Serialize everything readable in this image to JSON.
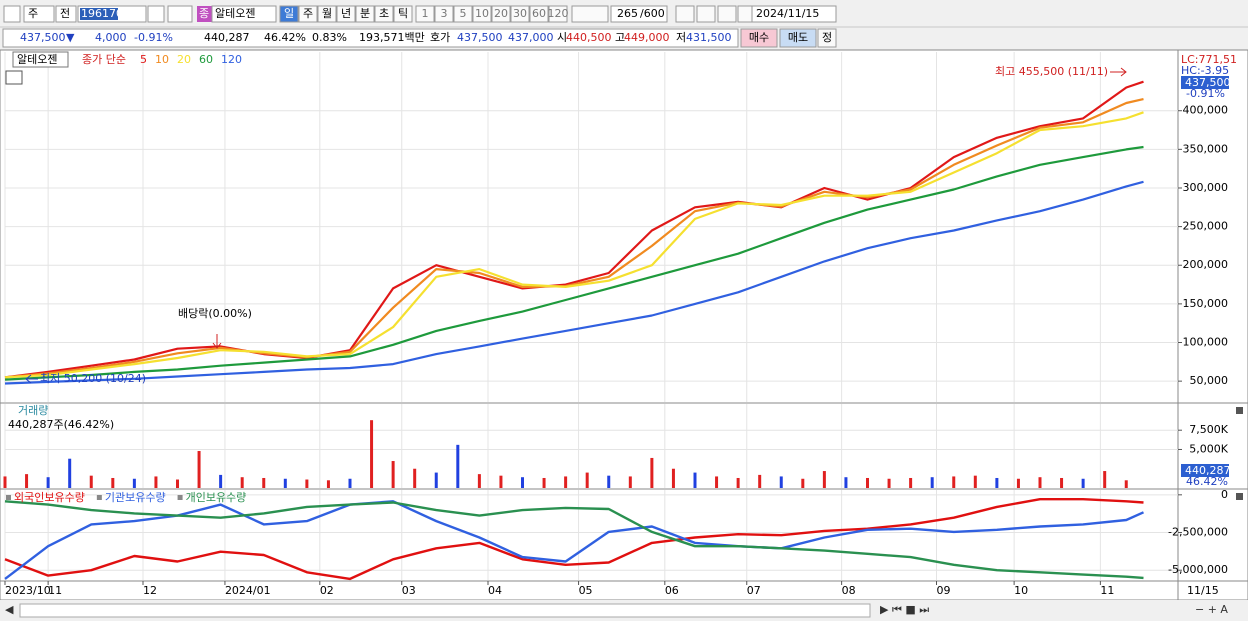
{
  "toolbar": {
    "code_type": "주",
    "market": "전",
    "code": "196170",
    "badge": "종",
    "name": "알테오젠",
    "periods": [
      "일",
      "주",
      "월",
      "년",
      "분",
      "초",
      "틱"
    ],
    "intervals": [
      "1",
      "3",
      "5",
      "10",
      "20",
      "30",
      "60",
      "120"
    ],
    "count": "265",
    "max_count": "/600",
    "date": "2024/11/15"
  },
  "info_bar": {
    "price": "437,500",
    "direction": "▼",
    "change": "4,000",
    "change_rate": "-0.91%",
    "volume": "440,287",
    "volume_rate": "46.42%",
    "turnover": "0.83%",
    "amount": "193,571백만",
    "quote_label": "호가",
    "ask": "437,500",
    "bid": "437,000",
    "open_label": "시",
    "open": "440,500",
    "high_label": "고",
    "high": "449,000",
    "low_label": "저",
    "low": "431,500",
    "buy": "매수",
    "sell": "매도",
    "correction": "정"
  },
  "chart_data": [
    {
      "type": "line",
      "title": "알테오젠",
      "subtitle": "종가 단순",
      "x": [
        0,
        10,
        20,
        30,
        40,
        50,
        60,
        70,
        80,
        90,
        100,
        110,
        120,
        130,
        140,
        150,
        160,
        170,
        180,
        190,
        200,
        210,
        220,
        230,
        240,
        250,
        260,
        264
      ],
      "series": [
        {
          "name": "5",
          "color": "#e01818",
          "values": [
            55000,
            62000,
            70000,
            78000,
            92000,
            95000,
            85000,
            80000,
            90000,
            170000,
            200000,
            185000,
            170000,
            175000,
            190000,
            245000,
            275000,
            282000,
            275000,
            300000,
            285000,
            300000,
            340000,
            365000,
            380000,
            390000,
            430000,
            437500
          ]
        },
        {
          "name": "10",
          "color": "#f08a20",
          "values": [
            55000,
            60000,
            67000,
            75000,
            86000,
            93000,
            86000,
            81000,
            88000,
            145000,
            195000,
            190000,
            172000,
            173000,
            185000,
            225000,
            270000,
            281000,
            276000,
            295000,
            288000,
            298000,
            330000,
            355000,
            378000,
            385000,
            410000,
            415000
          ]
        },
        {
          "name": "20",
          "color": "#f5e030",
          "values": [
            55000,
            58000,
            65000,
            72000,
            80000,
            90000,
            88000,
            82000,
            85000,
            120000,
            185000,
            195000,
            175000,
            172000,
            180000,
            200000,
            260000,
            280000,
            278000,
            290000,
            290000,
            295000,
            320000,
            345000,
            375000,
            380000,
            390000,
            398000
          ]
        },
        {
          "name": "60",
          "color": "#1e9a3c",
          "values": [
            52000,
            55000,
            58000,
            62000,
            65000,
            70000,
            74000,
            78000,
            82000,
            97000,
            115000,
            128000,
            140000,
            155000,
            170000,
            185000,
            200000,
            215000,
            235000,
            255000,
            272000,
            285000,
            298000,
            315000,
            330000,
            340000,
            350000,
            353000
          ]
        },
        {
          "name": "120",
          "color": "#3060e0",
          "values": [
            47000,
            49000,
            51000,
            53000,
            56000,
            59000,
            62000,
            65000,
            67000,
            72000,
            85000,
            95000,
            105000,
            115000,
            125000,
            135000,
            150000,
            165000,
            185000,
            205000,
            222000,
            235000,
            245000,
            258000,
            270000,
            285000,
            302000,
            308000
          ]
        }
      ],
      "xlim": [
        0,
        272
      ],
      "xticks": [
        {
          "value": 0,
          "label": "2023/10"
        },
        {
          "value": 10,
          "label": "11"
        },
        {
          "value": 32,
          "label": "12"
        },
        {
          "value": 51,
          "label": "2024/01"
        },
        {
          "value": 73,
          "label": "02"
        },
        {
          "value": 92,
          "label": "03"
        },
        {
          "value": 112,
          "label": "04"
        },
        {
          "value": 133,
          "label": "05"
        },
        {
          "value": 153,
          "label": "06"
        },
        {
          "value": 172,
          "label": "07"
        },
        {
          "value": 194,
          "label": "08"
        },
        {
          "value": 216,
          "label": "09"
        },
        {
          "value": 234,
          "label": "10"
        },
        {
          "value": 254,
          "label": "11"
        }
      ],
      "end_date": "11/15",
      "ylim": [
        23000,
        476000
      ],
      "yticks": [
        {
          "value": 50000,
          "label": "50,000"
        },
        {
          "value": 100000,
          "label": "100,000"
        },
        {
          "value": 150000,
          "label": "150,000"
        },
        {
          "value": 200000,
          "label": "200,000"
        },
        {
          "value": 250000,
          "label": "250,000"
        },
        {
          "value": 300000,
          "label": "300,000"
        },
        {
          "value": 350000,
          "label": "350,000"
        },
        {
          "value": 400000,
          "label": "400,000"
        }
      ],
      "grid": true,
      "annotations": [
        "최고 455,500 (11/11)",
        "최저 50,200 (10/24)",
        "배당락(0.00%)"
      ],
      "lc_label": "LC:771,51",
      "hc_label": "HC:-3.95",
      "last_label": "437,500",
      "change_label": "-0.91%"
    },
    {
      "type": "bar",
      "title": "거래량",
      "subtitle": "440,287주(46.42%)",
      "x": [
        0,
        5,
        10,
        15,
        20,
        25,
        30,
        35,
        40,
        45,
        50,
        55,
        60,
        65,
        70,
        75,
        80,
        85,
        90,
        95,
        100,
        105,
        110,
        115,
        120,
        125,
        130,
        135,
        140,
        145,
        150,
        155,
        160,
        165,
        170,
        175,
        180,
        185,
        190,
        195,
        200,
        205,
        210,
        215,
        220,
        225,
        230,
        235,
        240,
        245,
        250,
        255,
        260
      ],
      "values": [
        1500,
        1800,
        1400,
        3800,
        1600,
        1300,
        1200,
        1500,
        1100,
        4800,
        1700,
        1400,
        1300,
        1200,
        1100,
        1000,
        1200,
        8800,
        3500,
        2500,
        2000,
        5600,
        1800,
        1600,
        1400,
        1300,
        1500,
        2000,
        1600,
        1500,
        3900,
        2500,
        2000,
        1500,
        1300,
        1700,
        1500,
        1200,
        2200,
        1400,
        1300,
        1200,
        1300,
        1400,
        1500,
        1600,
        1300,
        1200,
        1400,
        1300,
        1200,
        2200,
        1000
      ],
      "colors": [
        "#e02020",
        "#e02020",
        "#2040e0",
        "#2040e0",
        "#e02020",
        "#e02020",
        "#2040e0",
        "#e02020",
        "#e02020",
        "#e02020",
        "#2040e0",
        "#e02020",
        "#e02020",
        "#2040e0",
        "#e02020",
        "#e02020",
        "#2040e0",
        "#e02020",
        "#e02020",
        "#e02020",
        "#2040e0",
        "#2040e0",
        "#e02020",
        "#e02020",
        "#2040e0",
        "#e02020",
        "#e02020",
        "#e02020",
        "#2040e0",
        "#e02020",
        "#e02020",
        "#e02020",
        "#2040e0",
        "#e02020",
        "#e02020",
        "#e02020",
        "#2040e0",
        "#e02020",
        "#e02020",
        "#2040e0",
        "#e02020",
        "#e02020",
        "#e02020",
        "#2040e0",
        "#e02020",
        "#e02020",
        "#2040e0",
        "#e02020",
        "#e02020",
        "#e02020",
        "#2040e0",
        "#e02020",
        "#e02020"
      ],
      "xlim": [
        0,
        272
      ],
      "ylim": [
        0,
        10900
      ],
      "yticks": [
        {
          "value": 5000,
          "label": "5,000K"
        },
        {
          "value": 7500,
          "label": "7,500K"
        }
      ],
      "last_label": "440,287",
      "rate_label": "46.42%"
    },
    {
      "type": "line",
      "x": [
        0,
        10,
        20,
        30,
        40,
        50,
        60,
        70,
        80,
        90,
        100,
        110,
        120,
        130,
        140,
        150,
        160,
        170,
        180,
        190,
        200,
        210,
        220,
        230,
        240,
        250,
        260,
        264
      ],
      "series": [
        {
          "name": "외국인보유수량",
          "color": "#e01010",
          "values": [
            -4280000,
            -5360000,
            -5000000,
            -4060000,
            -4420000,
            -3770000,
            -3990000,
            -5140000,
            -5580000,
            -4280000,
            -3550000,
            -3190000,
            -4280000,
            -4640000,
            -4490000,
            -3190000,
            -2830000,
            -2610000,
            -2680000,
            -2390000,
            -2250000,
            -1960000,
            -1520000,
            -800000,
            -290000,
            -290000,
            -430000,
            -510000
          ]
        },
        {
          "name": "기관보유수량",
          "color": "#3060e0",
          "values": [
            -5580000,
            -3410000,
            -1960000,
            -1740000,
            -1380000,
            -650000,
            -1960000,
            -1740000,
            -650000,
            -430000,
            -1740000,
            -2830000,
            -4130000,
            -4420000,
            -2460000,
            -2100000,
            -3190000,
            -3410000,
            -3550000,
            -2830000,
            -2320000,
            -2250000,
            -2460000,
            -2320000,
            -2100000,
            -1960000,
            -1670000,
            -1160000
          ]
        },
        {
          "name": "개인보유수량",
          "color": "#2a9050",
          "values": [
            -430000,
            -650000,
            -1010000,
            -1230000,
            -1380000,
            -1520000,
            -1230000,
            -800000,
            -650000,
            -510000,
            -1010000,
            -1380000,
            -1010000,
            -870000,
            -940000,
            -2460000,
            -3410000,
            -3410000,
            -3550000,
            -3700000,
            -3910000,
            -4130000,
            -4640000,
            -5000000,
            -5140000,
            -5290000,
            -5430000,
            -5510000
          ]
        }
      ],
      "xlim": [
        0,
        272
      ],
      "ylim": [
        -5650000,
        320000
      ],
      "yticks": [
        0,
        {
          "value": -2500000,
          "label": "-2,500,000"
        },
        {
          "value": -5000000,
          "label": "-5,000,000"
        }
      ]
    }
  ]
}
